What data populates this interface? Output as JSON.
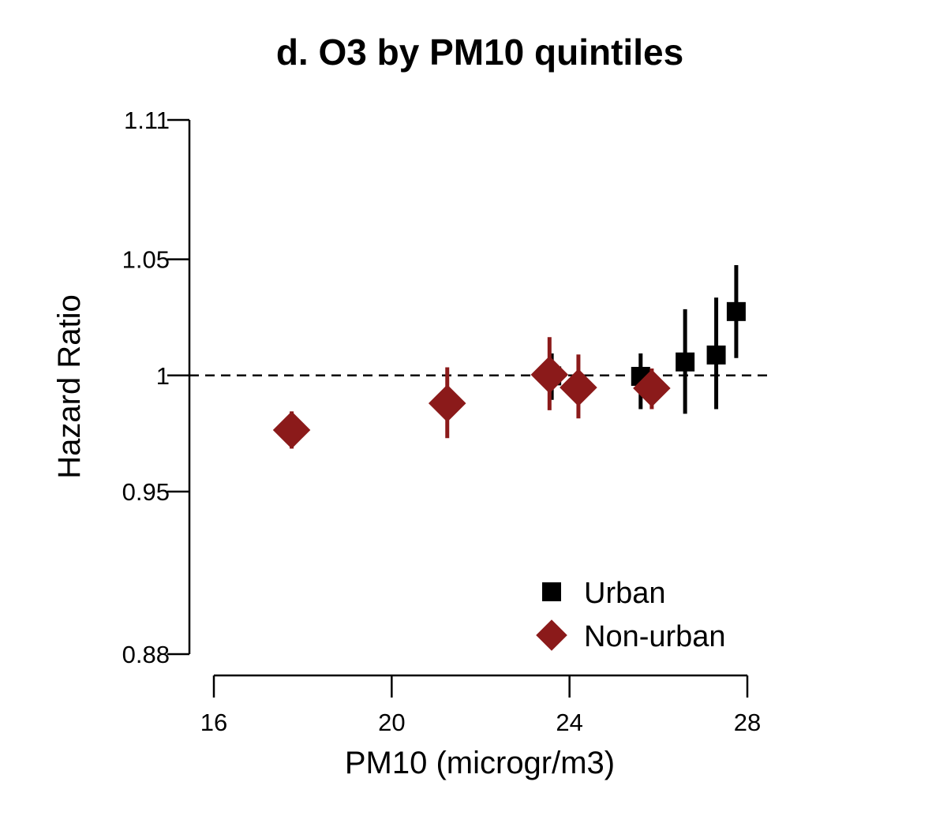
{
  "chart_data": {
    "type": "scatter",
    "title": "d. O3 by PM10 quintiles",
    "xlabel": "PM10 (microgr/m3)",
    "ylabel": "Hazard Ratio",
    "xlim": [
      16,
      28
    ],
    "ylim": [
      0.88,
      1.11
    ],
    "x_ticks": [
      16,
      20,
      24,
      28
    ],
    "x_tick_labels": [
      "16",
      "20",
      "24",
      "28"
    ],
    "y_ticks": [
      0.88,
      0.95,
      1.0,
      1.05,
      1.11
    ],
    "y_tick_labels": [
      "0.88",
      "0.95",
      "1",
      "1.05",
      "1.11"
    ],
    "reference_line": {
      "y": 1.0,
      "style": "dashed"
    },
    "legend": {
      "placement": "bottom-right"
    },
    "series": [
      {
        "name": "Urban",
        "marker": "square",
        "color": "#000000",
        "points": [
          {
            "x": 23.6,
            "y": 0.9998,
            "lo": 0.9895,
            "hi": 1.0095
          },
          {
            "x": 25.6,
            "y": 0.9996,
            "lo": 0.9855,
            "hi": 1.0095
          },
          {
            "x": 26.6,
            "y": 1.0058,
            "lo": 0.9835,
            "hi": 1.0285
          },
          {
            "x": 27.3,
            "y": 1.0088,
            "lo": 0.9855,
            "hi": 1.0335
          },
          {
            "x": 27.75,
            "y": 1.0275,
            "lo": 1.0075,
            "hi": 1.0475
          }
        ]
      },
      {
        "name": "Non-urban",
        "marker": "diamond",
        "color": "#8b1a1a",
        "points": [
          {
            "x": 17.75,
            "y": 0.9765,
            "lo": 0.9685,
            "hi": 0.9845
          },
          {
            "x": 21.25,
            "y": 0.988,
            "lo": 0.973,
            "hi": 1.0035
          },
          {
            "x": 23.55,
            "y": 1.0003,
            "lo": 0.985,
            "hi": 1.0165
          },
          {
            "x": 24.2,
            "y": 0.9948,
            "lo": 0.9815,
            "hi": 1.009
          },
          {
            "x": 25.85,
            "y": 0.9945,
            "lo": 0.9855,
            "hi": 1.003
          }
        ]
      }
    ]
  }
}
